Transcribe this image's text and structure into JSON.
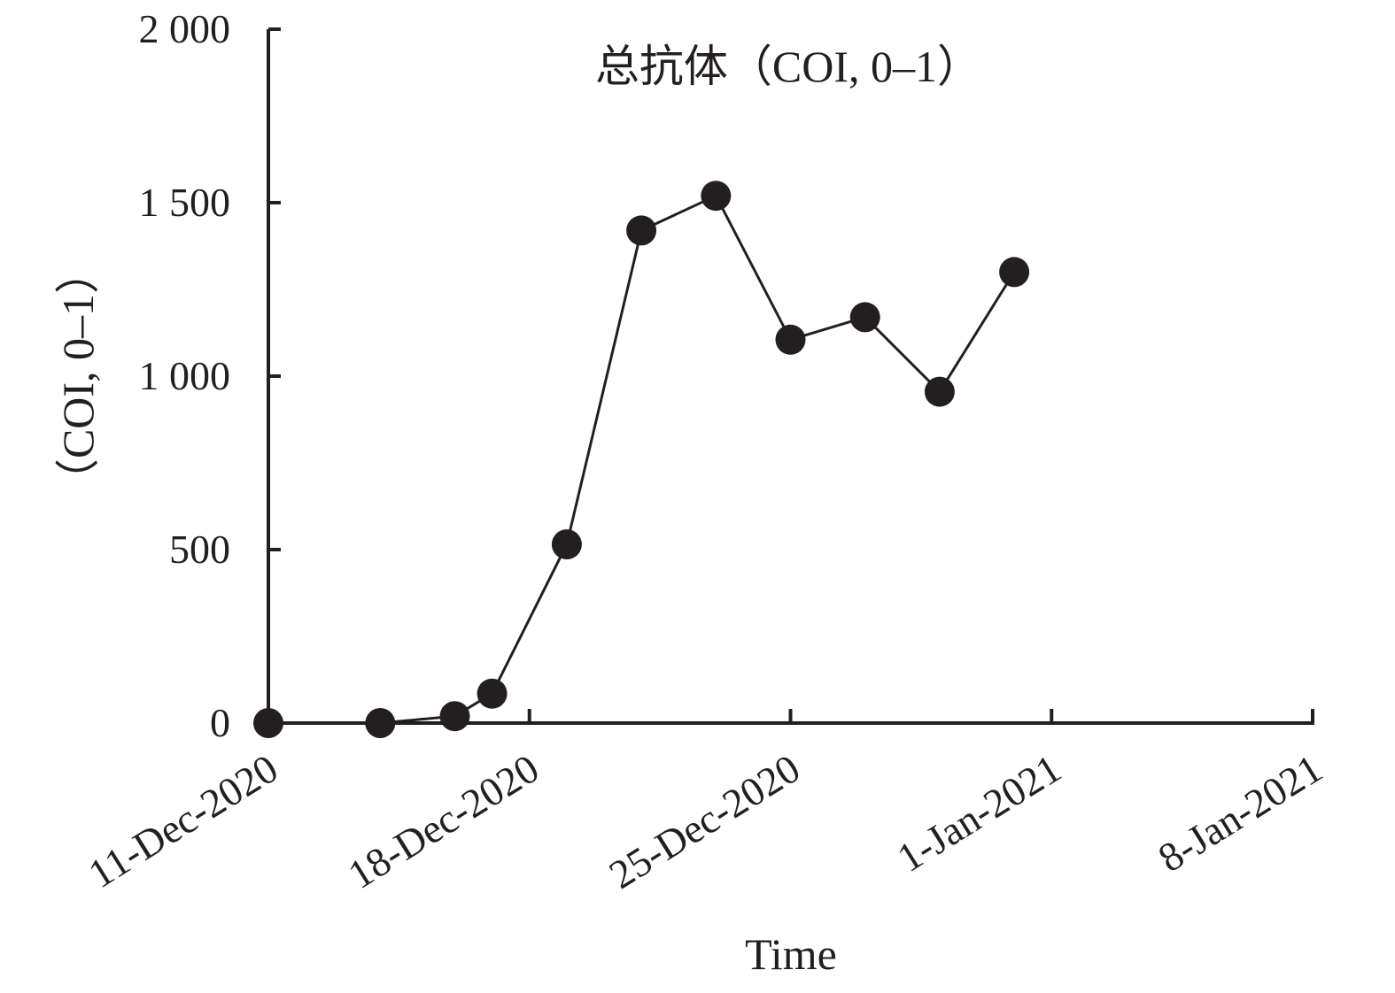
{
  "chart_data": {
    "type": "line",
    "title": "总抗体（COI, 0–1）",
    "xlabel": "Time",
    "ylabel": "（COI, 0–1）",
    "x_type": "date",
    "xlim": [
      "2020-12-11",
      "2021-01-08"
    ],
    "ylim": [
      0,
      2000
    ],
    "x_ticks": [
      "2020-12-11",
      "2020-12-18",
      "2020-12-25",
      "2021-01-01",
      "2021-01-08"
    ],
    "x_tick_labels": [
      "11-Dec-2020",
      "18-Dec-2020",
      "25-Dec-2020",
      "1-Jan-2021",
      "8-Jan-2021"
    ],
    "y_ticks": [
      0,
      500,
      1000,
      1500,
      2000
    ],
    "y_tick_labels": [
      "0",
      "500",
      "1 000",
      "1 500",
      "2 000"
    ],
    "grid": false,
    "legend": "none",
    "series": [
      {
        "color": "#231f20",
        "marker": "filled-circle",
        "x": [
          "2020-12-11",
          "2020-12-14",
          "2020-12-16",
          "2020-12-17",
          "2020-12-19",
          "2020-12-21",
          "2020-12-23",
          "2020-12-25",
          "2020-12-27",
          "2020-12-29",
          "2020-12-31"
        ],
        "y": [
          0,
          0,
          20,
          85,
          515,
          1420,
          1520,
          1105,
          1170,
          955,
          1300
        ]
      }
    ]
  }
}
